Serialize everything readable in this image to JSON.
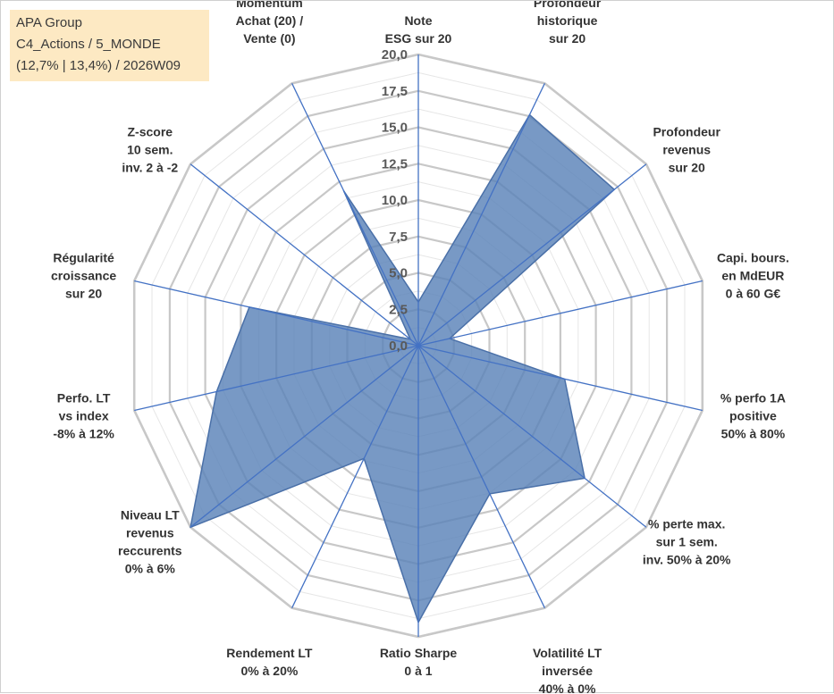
{
  "legend": {
    "line1": "APA Group",
    "line2": "C4_Actions / 5_MONDE",
    "line3": "(12,7% | 13,4%) / 2026W09"
  },
  "colors": {
    "fill": "#5a82b8",
    "stroke": "#4a70a8",
    "grid": "#c8c8c8",
    "spoke": "#4472c4",
    "legend_bg": "#fde9c3"
  },
  "chart_data": {
    "type": "radar",
    "rmin": 0,
    "rmax": 20,
    "ticks": [
      "0,0",
      "2,5",
      "5,0",
      "7,5",
      "10,0",
      "12,5",
      "15,0",
      "17,5",
      "20,0"
    ],
    "tick_values": [
      0,
      2.5,
      5,
      7.5,
      10,
      12.5,
      15,
      17.5,
      20
    ],
    "axes": [
      {
        "label": [
          "Note",
          "ESG sur 20"
        ],
        "value": 3
      },
      {
        "label": [
          "Profondeur",
          "historique",
          "sur 20"
        ],
        "value": 17.6
      },
      {
        "label": [
          "Profondeur",
          "revenus",
          "sur 20"
        ],
        "value": 17.2
      },
      {
        "label": [
          "Capi. bours.",
          "en MdEUR",
          "0 à 60 G€"
        ],
        "value": 2.2
      },
      {
        "label": [
          "% perfo 1A",
          "positive",
          "50% à 80%"
        ],
        "value": 10.3
      },
      {
        "label": [
          "% perte max.",
          "sur 1 sem.",
          "inv. 50% à 20%"
        ],
        "value": 14.6
      },
      {
        "label": [
          "Volatilité LT",
          "inversée",
          "40% à 0%"
        ],
        "value": 11.3
      },
      {
        "label": [
          "Ratio Sharpe",
          "0 à 1"
        ],
        "value": 19
      },
      {
        "label": [
          "Rendement LT",
          "0% à 20%"
        ],
        "value": 8.6
      },
      {
        "label": [
          "Niveau LT",
          "revenus",
          "reccurents",
          "0% à 6%"
        ],
        "value": 20
      },
      {
        "label": [
          "Perfo. LT",
          "vs index",
          "-8% à 12%"
        ],
        "value": 14.2
      },
      {
        "label": [
          "Régularité",
          "croissance",
          "sur 20"
        ],
        "value": 11.9
      },
      {
        "label": [
          "Z-score",
          "10 sem.",
          "inv. 2 à -2"
        ],
        "value": 0.7
      },
      {
        "label": [
          "Momentum",
          "Achat (20) /",
          "Vente (0)"
        ],
        "value": 11.8
      }
    ]
  }
}
